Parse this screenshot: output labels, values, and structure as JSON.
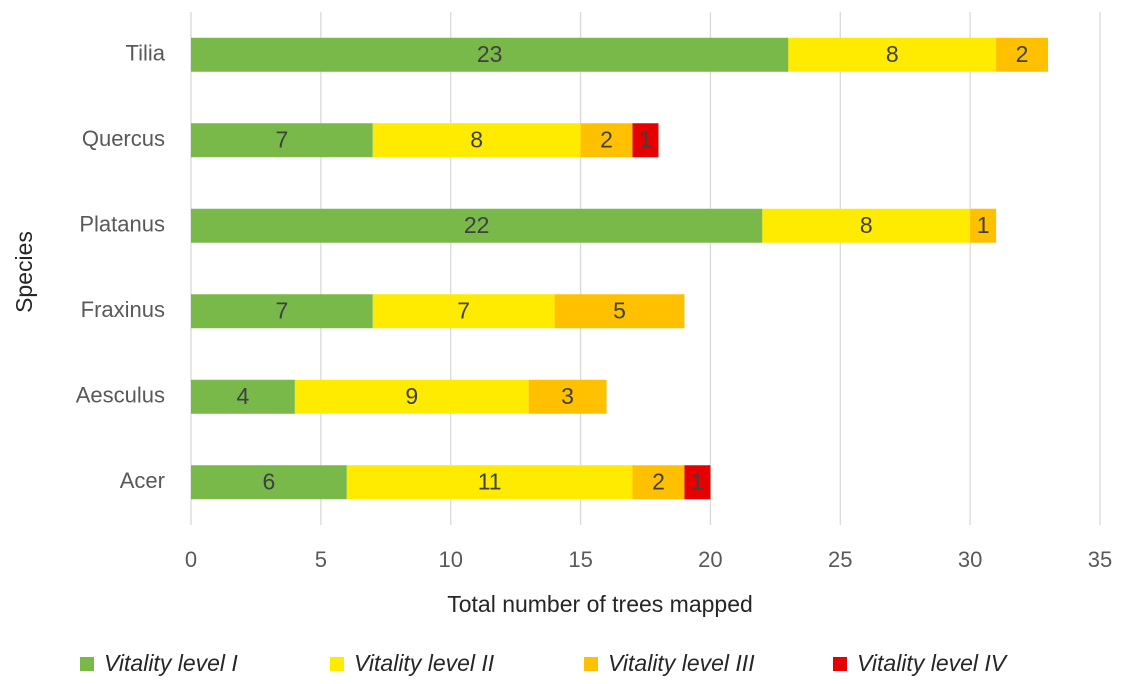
{
  "chart_data": {
    "type": "stacked-bar-horizontal",
    "categories": [
      "Tilia",
      "Quercus",
      "Platanus",
      "Fraxinus",
      "Aesculus",
      "Acer"
    ],
    "series": [
      {
        "name": "Vitality level I",
        "color": "#78b94a",
        "values": [
          23,
          7,
          22,
          7,
          4,
          6
        ]
      },
      {
        "name": "Vitality level II",
        "color": "#ffeb00",
        "values": [
          8,
          8,
          8,
          7,
          9,
          11
        ]
      },
      {
        "name": "Vitality level III",
        "color": "#ffc000",
        "values": [
          2,
          2,
          1,
          5,
          3,
          2
        ]
      },
      {
        "name": "Vitality level IV",
        "color": "#e60000",
        "values": [
          null,
          1,
          null,
          null,
          null,
          1
        ]
      }
    ],
    "xlabel": "Total number of trees mapped",
    "ylabel": "Species",
    "xlim": [
      0,
      35
    ],
    "xticks": [
      0,
      5,
      10,
      15,
      20,
      25,
      30,
      35
    ],
    "grid": true,
    "legend": "bottom"
  }
}
